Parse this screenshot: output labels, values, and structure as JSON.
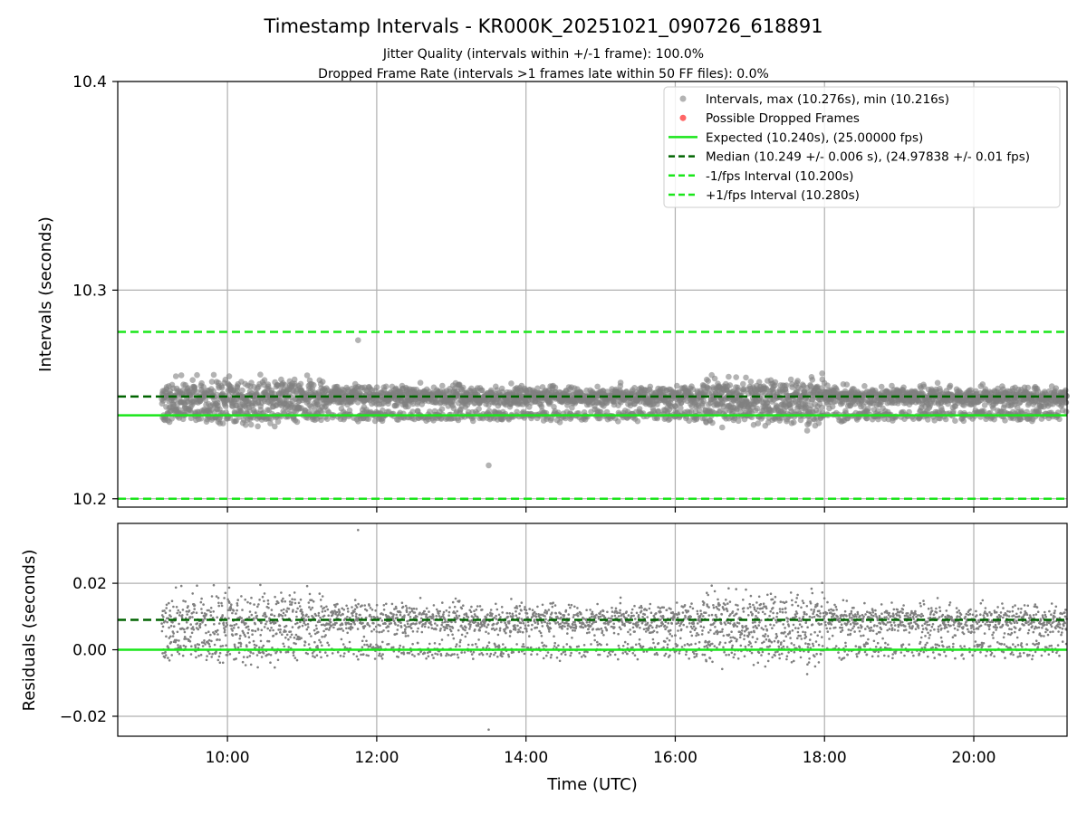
{
  "header": {
    "title": "Timestamp Intervals - KR000K_20251021_090726_618891",
    "subtitle1": "Jitter Quality (intervals within +/-1 frame): 100.0%",
    "subtitle2": "Dropped Frame Rate (intervals >1 frames late within 50 FF files): 0.0%"
  },
  "colors": {
    "points": "#808080",
    "dropped": "#ff0000",
    "expected": "#1ae61a",
    "median": "#006400",
    "fps_band": "#1ae61a",
    "grid": "#b0b0b0"
  },
  "chart_data": [
    {
      "type": "scatter",
      "panel": "intervals",
      "ylabel": "Intervals (seconds)",
      "xlim_hours": [
        8.53,
        21.25
      ],
      "ylim": [
        10.196,
        10.4
      ],
      "yticks": [
        10.2,
        10.3,
        10.4
      ],
      "ytick_labels": [
        "10.2",
        "10.3",
        "10.4"
      ],
      "grid": true,
      "legend_position": "top-right",
      "legend": [
        {
          "key": "intervals",
          "label": "Intervals, max (10.276s), min (10.216s)",
          "style": "marker"
        },
        {
          "key": "dropped",
          "label": "Possible Dropped Frames",
          "style": "marker"
        },
        {
          "key": "expected",
          "label": "Expected (10.240s), (25.00000 fps)",
          "style": "solid"
        },
        {
          "key": "median",
          "label": "Median (10.249 +/- 0.006 s), (24.97838 +/- 0.01 fps)",
          "style": "dashed"
        },
        {
          "key": "minus_fps",
          "label": "-1/fps Interval (10.200s)",
          "style": "dashed"
        },
        {
          "key": "plus_fps",
          "label": "+1/fps Interval (10.280s)",
          "style": "dashed"
        }
      ],
      "lines": {
        "expected": 10.24,
        "median": 10.249,
        "minus_fps": 10.2,
        "plus_fps": 10.28
      },
      "series_summary": {
        "start_hour": 9.12,
        "end_hour": 21.25,
        "count_per_hour": 290,
        "median": 10.249,
        "stdev": 0.006,
        "max": 10.276,
        "min": 10.216,
        "max_at_hour": 11.75,
        "min_at_hour": 13.5
      },
      "dropped_frames_count": 0
    },
    {
      "type": "scatter",
      "panel": "residuals",
      "ylabel": "Residuals (seconds)",
      "xlabel": "Time (UTC)",
      "xlim_hours": [
        8.53,
        21.25
      ],
      "ylim": [
        -0.026,
        0.038
      ],
      "yticks": [
        -0.02,
        0.0,
        0.02
      ],
      "ytick_labels": [
        "−0.02",
        "0.00",
        "0.02"
      ],
      "xticks_hours": [
        10,
        12,
        14,
        16,
        18,
        20
      ],
      "xtick_labels": [
        "10:00",
        "12:00",
        "14:00",
        "16:00",
        "18:00",
        "20:00"
      ],
      "grid": true,
      "lines": {
        "zero": 0.0,
        "median_residual": 0.009
      }
    }
  ]
}
